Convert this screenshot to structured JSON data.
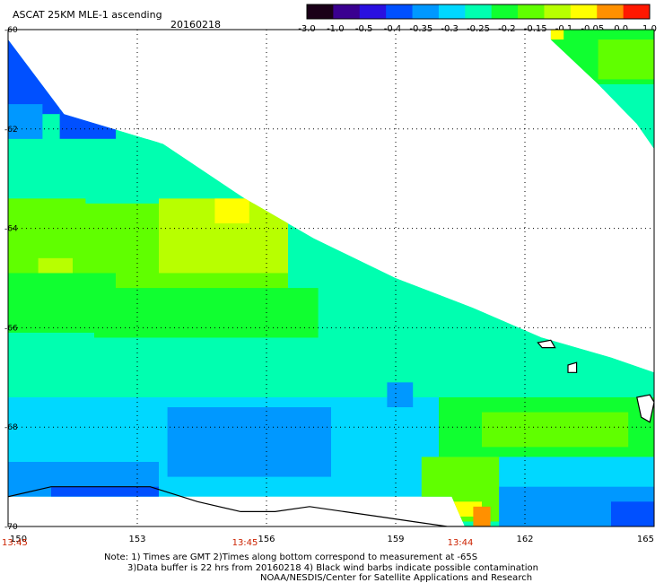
{
  "header": {
    "title": "ASCAT 25KM MLE-1 ascending",
    "date": "20160218"
  },
  "colorbar": {
    "labels": [
      "-3.0",
      "-1.0",
      "-0.5",
      "-0.4",
      "-0.35",
      "-0.3",
      "-0.25",
      "-0.2",
      "-0.15",
      "-0.1",
      "-0.05",
      "0.0",
      "1.0"
    ],
    "colors": [
      "#1a0018",
      "#3a0090",
      "#2a10e0",
      "#0050ff",
      "#0098ff",
      "#00d8ff",
      "#00ffb0",
      "#10ff30",
      "#60ff00",
      "#b8ff00",
      "#ffff00",
      "#ff9000",
      "#ff1800"
    ]
  },
  "notes": {
    "line1": "Note: 1) Times are GMT 2)Times along bottom correspond to measurement at -65S",
    "line2": "3)Data buffer is 22 hrs from 20160218 4) Black wind barbs indicate possible contamination",
    "line3": "NOAA/NESDIS/Center for Satellite Applications and Research"
  },
  "chart_data": {
    "type": "heatmap",
    "title": "ASCAT 25KM MLE-1 ascending",
    "subtitle": "20160218",
    "x_axis": {
      "ticks": [
        "150",
        "153",
        "156",
        "159",
        "162",
        "165"
      ],
      "range": [
        150,
        165
      ]
    },
    "y_axis": {
      "ticks": [
        "-60",
        "-62",
        "-64",
        "-66",
        "-68",
        "-70"
      ],
      "range": [
        -70,
        -60
      ]
    },
    "time_labels": [
      {
        "lon": 150,
        "time": "13:45"
      },
      {
        "lon": 155.5,
        "time": "13:45"
      },
      {
        "lon": 160.5,
        "time": "13:44"
      }
    ],
    "grid": "dotted",
    "swaths": [
      {
        "name": "main",
        "lon_range": [
          150,
          165
        ],
        "upper_boundary": [
          [
            150,
            -60.2
          ],
          [
            151.3,
            -61.7
          ],
          [
            153.6,
            -62.3
          ],
          [
            155.5,
            -63.4
          ],
          [
            157.1,
            -64.2
          ],
          [
            159.0,
            -65.0
          ],
          [
            160.8,
            -65.6
          ],
          [
            162.4,
            -66.2
          ],
          [
            164.0,
            -66.6
          ],
          [
            165,
            -66.9
          ]
        ],
        "lower_boundary": [
          [
            150,
            -69.4
          ],
          [
            160.3,
            -69.4
          ],
          [
            160.6,
            -70
          ],
          [
            165,
            -70
          ]
        ],
        "regions": [
          {
            "lon": [
              150,
              151.2
            ],
            "lat": [
              -61.7,
              -60
            ],
            "value": -0.4
          },
          {
            "lon": [
              151.2,
              152.5
            ],
            "lat": [
              -62.2,
              -61.6
            ],
            "value": -0.4
          },
          {
            "lon": [
              150,
              150.8
            ],
            "lat": [
              -62.6,
              -61.5
            ],
            "value": -0.35
          },
          {
            "lon": [
              150,
              153.5
            ],
            "lat": [
              -63.6,
              -62.2
            ],
            "value": -0.25
          },
          {
            "lon": [
              150,
              151.8
            ],
            "lat": [
              -65.0,
              -63.4
            ],
            "value": -0.15
          },
          {
            "lon": [
              150.7,
              151.5
            ],
            "lat": [
              -65.2,
              -64.6
            ],
            "value": -0.1
          },
          {
            "lon": [
              151.5,
              156.5
            ],
            "lat": [
              -65.4,
              -63.5
            ],
            "value": -0.15
          },
          {
            "lon": [
              153.5,
              156.5
            ],
            "lat": [
              -64.9,
              -63.4
            ],
            "value": -0.1
          },
          {
            "lon": [
              154.8,
              155.6
            ],
            "lat": [
              -63.9,
              -63.4
            ],
            "value": -0.05
          },
          {
            "lon": [
              150,
              152.5
            ],
            "lat": [
              -66.1,
              -64.9
            ],
            "value": -0.2
          },
          {
            "lon": [
              152,
              157.2
            ],
            "lat": [
              -66.2,
              -65.2
            ],
            "value": -0.2
          },
          {
            "lon": [
              150,
              165
            ],
            "lat": [
              -67.4,
              -66.2
            ],
            "value": -0.25
          },
          {
            "lon": [
              150,
              165
            ],
            "lat": [
              -69.4,
              -67.4
            ],
            "value": -0.3
          },
          {
            "lon": [
              153.7,
              157.5
            ],
            "lat": [
              -69.0,
              -67.6
            ],
            "value": -0.35
          },
          {
            "lon": [
              150,
              153.5
            ],
            "lat": [
              -69.4,
              -68.7
            ],
            "value": -0.35
          },
          {
            "lon": [
              151,
              153.5
            ],
            "lat": [
              -69.4,
              -69.2
            ],
            "value": -0.4
          },
          {
            "lon": [
              158.8,
              159.4
            ],
            "lat": [
              -67.6,
              -67.1
            ],
            "value": -0.35
          },
          {
            "lon": [
              160,
              165
            ],
            "lat": [
              -68.6,
              -67.4
            ],
            "value": -0.2
          },
          {
            "lon": [
              161,
              164.4
            ],
            "lat": [
              -68.4,
              -67.7
            ],
            "value": -0.15
          },
          {
            "lon": [
              159.6,
              161.4
            ],
            "lat": [
              -69.9,
              -68.6
            ],
            "value": -0.15
          },
          {
            "lon": [
              159.8,
              161.0
            ],
            "lat": [
              -69.8,
              -69.5
            ],
            "value": -0.05
          },
          {
            "lon": [
              160.8,
              161.2
            ],
            "lat": [
              -70,
              -69.6
            ],
            "value": 0.0
          },
          {
            "lon": [
              161.4,
              165
            ],
            "lat": [
              -70,
              -69.2
            ],
            "value": -0.35
          },
          {
            "lon": [
              164.0,
              165
            ],
            "lat": [
              -70,
              -69.5
            ],
            "value": -0.4
          },
          {
            "lon": [
              157.3,
              157.7
            ],
            "lat": [
              -69.7,
              -69.5
            ],
            "value": -0.05
          }
        ]
      },
      {
        "name": "northeast",
        "upper_boundary": [
          [
            162.6,
            -60
          ],
          [
            165,
            -60
          ]
        ],
        "lower_boundary": [
          [
            162.6,
            -60.2
          ],
          [
            163.7,
            -61.1
          ],
          [
            164.6,
            -61.9
          ],
          [
            165,
            -62.4
          ]
        ],
        "regions": [
          {
            "lon": [
              162.6,
              165
            ],
            "lat": [
              -61.2,
              -60
            ],
            "value": -0.2
          },
          {
            "lon": [
              163.4,
              165
            ],
            "lat": [
              -62.4,
              -61.1
            ],
            "value": -0.25
          },
          {
            "lon": [
              163.7,
              165
            ],
            "lat": [
              -61.0,
              -60.2
            ],
            "value": -0.15
          },
          {
            "lon": [
              162.6,
              162.9
            ],
            "lat": [
              -60.2,
              -60
            ],
            "value": -0.05
          }
        ]
      }
    ],
    "coastline": [
      [
        150,
        -69.4
      ],
      [
        151.0,
        -69.2
      ],
      [
        152.4,
        -69.2
      ],
      [
        153.3,
        -69.2
      ],
      [
        154.4,
        -69.5
      ],
      [
        155.4,
        -69.7
      ],
      [
        156.2,
        -69.7
      ],
      [
        157.0,
        -69.6
      ],
      [
        157.8,
        -69.7
      ],
      [
        158.6,
        -69.8
      ],
      [
        159.4,
        -69.9
      ],
      [
        160.2,
        -70
      ],
      [
        161.2,
        -70
      ]
    ],
    "islands": [
      [
        [
          162.3,
          -66.3
        ],
        [
          162.6,
          -66.25
        ],
        [
          162.7,
          -66.4
        ],
        [
          162.4,
          -66.4
        ]
      ],
      [
        [
          163.0,
          -66.75
        ],
        [
          163.2,
          -66.7
        ],
        [
          163.2,
          -66.9
        ],
        [
          163.0,
          -66.9
        ]
      ],
      [
        [
          164.6,
          -67.4
        ],
        [
          164.9,
          -67.35
        ],
        [
          165,
          -67.5
        ],
        [
          164.9,
          -67.9
        ],
        [
          164.7,
          -67.8
        ]
      ]
    ]
  }
}
